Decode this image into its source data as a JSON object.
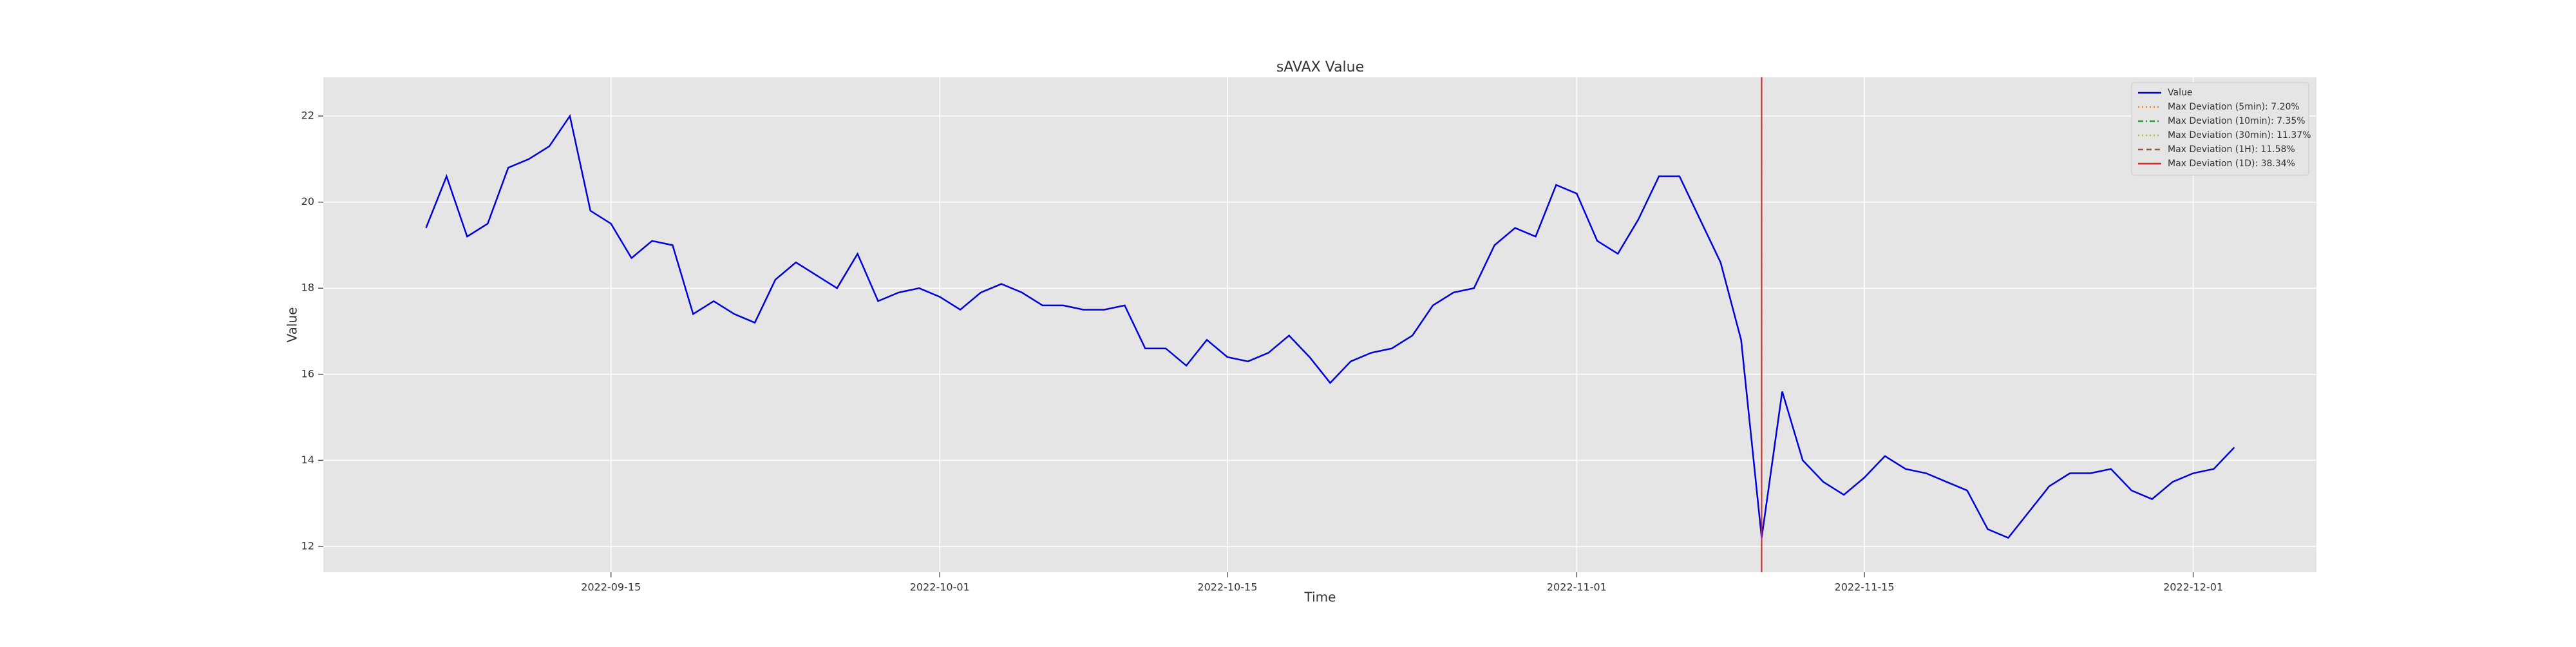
{
  "chart_data": {
    "type": "line",
    "title": "sAVAX Value",
    "xlabel": "Time",
    "ylabel": "Value",
    "x": [
      "2022-09-06",
      "2022-09-07",
      "2022-09-08",
      "2022-09-09",
      "2022-09-10",
      "2022-09-11",
      "2022-09-12",
      "2022-09-13",
      "2022-09-14",
      "2022-09-15",
      "2022-09-16",
      "2022-09-17",
      "2022-09-18",
      "2022-09-19",
      "2022-09-20",
      "2022-09-21",
      "2022-09-22",
      "2022-09-23",
      "2022-09-24",
      "2022-09-25",
      "2022-09-26",
      "2022-09-27",
      "2022-09-28",
      "2022-09-29",
      "2022-09-30",
      "2022-10-01",
      "2022-10-02",
      "2022-10-03",
      "2022-10-04",
      "2022-10-05",
      "2022-10-06",
      "2022-10-07",
      "2022-10-08",
      "2022-10-09",
      "2022-10-10",
      "2022-10-11",
      "2022-10-12",
      "2022-10-13",
      "2022-10-14",
      "2022-10-15",
      "2022-10-16",
      "2022-10-17",
      "2022-10-18",
      "2022-10-19",
      "2022-10-20",
      "2022-10-21",
      "2022-10-22",
      "2022-10-23",
      "2022-10-24",
      "2022-10-25",
      "2022-10-26",
      "2022-10-27",
      "2022-10-28",
      "2022-10-29",
      "2022-10-30",
      "2022-10-31",
      "2022-11-01",
      "2022-11-02",
      "2022-11-03",
      "2022-11-04",
      "2022-11-05",
      "2022-11-06",
      "2022-11-07",
      "2022-11-08",
      "2022-11-09",
      "2022-11-10",
      "2022-11-11",
      "2022-11-12",
      "2022-11-13",
      "2022-11-14",
      "2022-11-15",
      "2022-11-16",
      "2022-11-17",
      "2022-11-18",
      "2022-11-19",
      "2022-11-20",
      "2022-11-21",
      "2022-11-22",
      "2022-11-23",
      "2022-11-24",
      "2022-11-25",
      "2022-11-26",
      "2022-11-27",
      "2022-11-28",
      "2022-11-29",
      "2022-11-30",
      "2022-12-01",
      "2022-12-02",
      "2022-12-03"
    ],
    "series": [
      {
        "name": "Value",
        "color": "#0000dd",
        "values": [
          19.4,
          20.6,
          19.2,
          19.5,
          20.8,
          21.0,
          21.3,
          22.0,
          19.8,
          19.5,
          18.7,
          19.1,
          19.0,
          17.4,
          17.7,
          17.4,
          17.2,
          18.2,
          18.6,
          18.3,
          18.0,
          18.8,
          17.7,
          17.9,
          18.0,
          17.8,
          17.5,
          17.9,
          18.1,
          17.9,
          17.6,
          17.6,
          17.5,
          17.5,
          17.6,
          16.6,
          16.6,
          16.2,
          16.8,
          16.4,
          16.3,
          16.5,
          16.9,
          16.4,
          15.8,
          16.3,
          16.5,
          16.6,
          16.9,
          17.6,
          17.9,
          18.0,
          19.0,
          19.4,
          19.2,
          20.4,
          20.2,
          19.1,
          18.8,
          19.6,
          20.6,
          20.6,
          19.6,
          18.6,
          16.8,
          12.2,
          15.6,
          14.0,
          13.5,
          13.2,
          13.6,
          14.1,
          13.8,
          13.7,
          13.5,
          13.3,
          12.4,
          12.2,
          12.8,
          13.4,
          13.7,
          13.7,
          13.8,
          13.3,
          13.1,
          13.5,
          13.7,
          13.8,
          14.3
        ]
      }
    ],
    "vlines": [
      {
        "name": "Max Deviation (5min): 7.20%",
        "color": "#ff7f0e",
        "style": "dotted",
        "x": "2022-11-10"
      },
      {
        "name": "Max Deviation (10min): 7.35%",
        "color": "#2ca02c",
        "style": "dashdot",
        "x": "2022-11-10"
      },
      {
        "name": "Max Deviation (30min): 11.37%",
        "color": "#bcbd22",
        "style": "dotted",
        "x": "2022-11-10"
      },
      {
        "name": "Max Deviation (1H): 11.58%",
        "color": "#8c564b",
        "style": "dashed",
        "x": "2022-11-10"
      },
      {
        "name": "Max Deviation (1D): 38.34%",
        "color": "#d62728",
        "style": "solid",
        "x": "2022-11-10"
      }
    ],
    "xlim": [
      "2022-09-01",
      "2022-12-07"
    ],
    "xticks": [
      "2022-09-15",
      "2022-10-01",
      "2022-10-15",
      "2022-11-01",
      "2022-11-15",
      "2022-12-01"
    ],
    "ylim": [
      11.4,
      22.9
    ],
    "yticks": [
      12,
      14,
      16,
      18,
      20,
      22
    ],
    "grid": true,
    "legend": "upper right"
  }
}
